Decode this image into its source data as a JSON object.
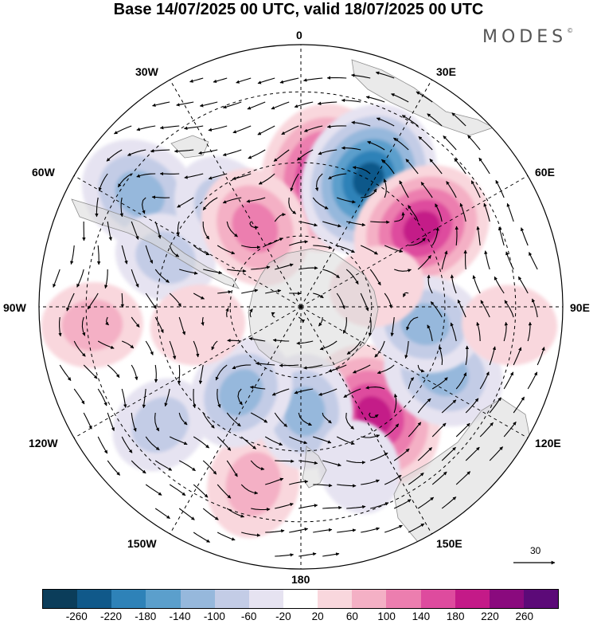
{
  "title": "Base 14/07/2025 00 UTC, valid 18/07/2025 00 UTC",
  "brand": "MODES",
  "brand_mark": "©",
  "longitude_labels": {
    "lon_0": "0",
    "lon_30e": "30E",
    "lon_60e": "60E",
    "lon_90e": "90E",
    "lon_120e": "120E",
    "lon_150e": "150E",
    "lon_180": "180",
    "lon_150w": "150W",
    "lon_120w": "120W",
    "lon_90w": "90W",
    "lon_60w": "60W",
    "lon_30w": "30W"
  },
  "reference_vector_label": "30",
  "colorbar": {
    "colors": [
      "#0b3d5a",
      "#10598a",
      "#2e82b8",
      "#5b9fcc",
      "#96b8dc",
      "#c3cce6",
      "#e6e3f1",
      "#ffffff",
      "#f9d7dd",
      "#f4b0c5",
      "#ec7eaf",
      "#de4b9e",
      "#c41a88",
      "#8a0a7e",
      "#5c0a78"
    ],
    "ticks": [
      "-260",
      "-220",
      "-180",
      "-140",
      "-100",
      "-60",
      "-20",
      "20",
      "60",
      "100",
      "140",
      "180",
      "220",
      "260"
    ]
  },
  "anomaly_centers": [
    {
      "name": "blob-a",
      "lat_ring": 0.5,
      "lon": 10,
      "value": 220
    },
    {
      "name": "blob-b",
      "lat_ring": 0.55,
      "lon": 28,
      "value": -240
    },
    {
      "name": "blob-c",
      "lat_ring": 0.55,
      "lon": 57,
      "value": 200
    },
    {
      "name": "blob-d",
      "lat_ring": 0.75,
      "lon": -55,
      "value": -140
    },
    {
      "name": "blob-e",
      "lat_ring": 0.48,
      "lon": -38,
      "value": -100
    },
    {
      "name": "blob-f",
      "lat_ring": 0.5,
      "lon": 146,
      "value": 220
    },
    {
      "name": "blob-g",
      "lat_ring": 0.6,
      "lon": 115,
      "value": -140
    },
    {
      "name": "blob-h",
      "lat_ring": 0.48,
      "lon": 98,
      "value": -120
    },
    {
      "name": "blob-i",
      "lat_ring": 0.7,
      "lon": -165,
      "value": 100
    },
    {
      "name": "blob-j",
      "lat_ring": 0.4,
      "lon": 178,
      "value": -120
    },
    {
      "name": "blob-k",
      "lat_ring": 0.8,
      "lon": -95,
      "value": 80
    },
    {
      "name": "blob-l",
      "lat_ring": 0.7,
      "lon": -130,
      "value": -80
    },
    {
      "name": "blob-m",
      "lat_ring": 0.4,
      "lon": -145,
      "value": -120
    },
    {
      "name": "blob-n",
      "lat_ring": 0.8,
      "lon": 95,
      "value": 60
    },
    {
      "name": "blob-o",
      "lat_ring": 0.55,
      "lon": -70,
      "value": -80
    },
    {
      "name": "blob-p",
      "lat_ring": 0.4,
      "lon": -100,
      "value": 60
    },
    {
      "name": "blob-q",
      "lat_ring": 0.35,
      "lon": -30,
      "value": 140
    },
    {
      "name": "blob-r",
      "lat_ring": 0.65,
      "lon": 160,
      "value": -60
    },
    {
      "name": "blob-s",
      "lat_ring": 0.3,
      "lon": 75,
      "value": 60
    }
  ]
}
